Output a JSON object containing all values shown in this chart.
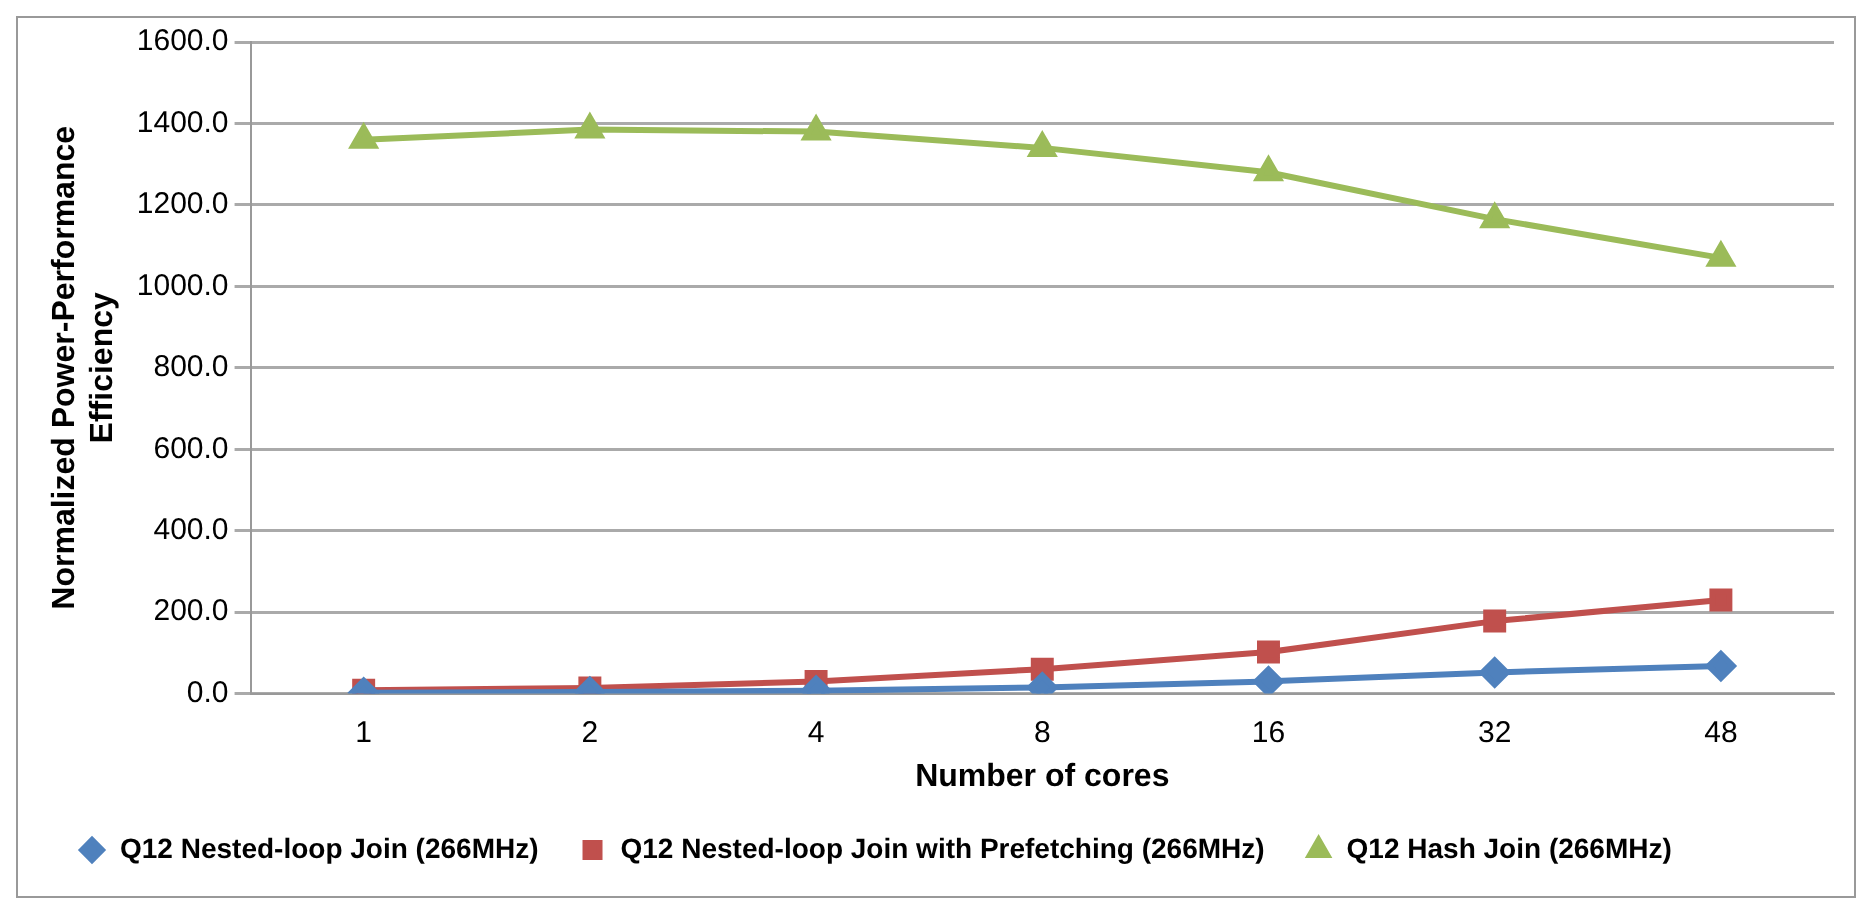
{
  "chart_data": {
    "type": "line",
    "xlabel": "Number of cores",
    "ylabel": "Normalized Power-Performance Efficiency",
    "categories": [
      "1",
      "2",
      "4",
      "8",
      "16",
      "32",
      "48"
    ],
    "series": [
      {
        "name": "Q12 Nested-loop Join (266MHz)",
        "color": "#4f81bd",
        "marker": "diamond",
        "values": [
          2,
          4,
          7,
          15,
          30,
          52,
          68
        ]
      },
      {
        "name": "Q12 Nested-loop Join with Prefetching (266MHz)",
        "color": "#c0504d",
        "marker": "square",
        "values": [
          8,
          14,
          30,
          60,
          102,
          178,
          230
        ]
      },
      {
        "name": "Q12 Hash Join (266MHz)",
        "color": "#9bbb59",
        "marker": "triangle",
        "values": [
          1360,
          1385,
          1380,
          1340,
          1280,
          1165,
          1070
        ]
      }
    ],
    "ylim": [
      0,
      1600
    ],
    "yticks": [
      {
        "value": 0,
        "label": "0.0"
      },
      {
        "value": 200,
        "label": "200.0"
      },
      {
        "value": 400,
        "label": "400.0"
      },
      {
        "value": 600,
        "label": "600.0"
      },
      {
        "value": 800,
        "label": "800.0"
      },
      {
        "value": 1000,
        "label": "1000.0"
      },
      {
        "value": 1200,
        "label": "1200.0"
      },
      {
        "value": 1400,
        "label": "1400.0"
      },
      {
        "value": 1600,
        "label": "1600.0"
      }
    ],
    "grid": "y",
    "legend": "bottom"
  }
}
